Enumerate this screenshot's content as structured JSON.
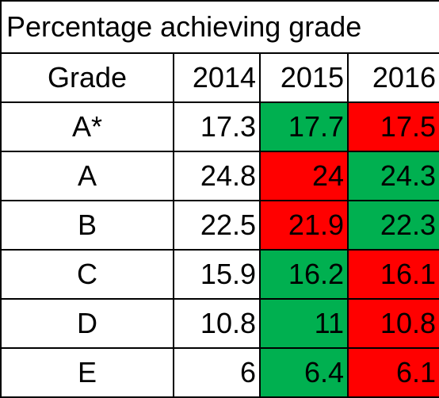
{
  "table": {
    "title": "Percentage achieving grade",
    "headers": [
      "Grade",
      "2014",
      "2015",
      "2016"
    ],
    "rows": [
      {
        "grade": "A*",
        "y2014": "17.3",
        "y2015": "17.7",
        "y2016": "17.5"
      },
      {
        "grade": "A",
        "y2014": "24.8",
        "y2015": "24",
        "y2016": "24.3"
      },
      {
        "grade": "B",
        "y2014": "22.5",
        "y2015": "21.9",
        "y2016": "22.3"
      },
      {
        "grade": "C",
        "y2014": "15.9",
        "y2015": "16.2",
        "y2016": "16.1"
      },
      {
        "grade": "D",
        "y2014": "10.8",
        "y2015": "11",
        "y2016": "10.8"
      },
      {
        "grade": "E",
        "y2014": "6",
        "y2015": "6.4",
        "y2016": "6.1"
      }
    ],
    "cell_colors": {
      "increase": "#00b050",
      "decrease": "#ff0000",
      "neutral": "#ffffff"
    },
    "row_fills": [
      {
        "y2015": "increase",
        "y2016": "decrease"
      },
      {
        "y2015": "decrease",
        "y2016": "increase"
      },
      {
        "y2015": "decrease",
        "y2016": "increase"
      },
      {
        "y2015": "increase",
        "y2016": "decrease"
      },
      {
        "y2015": "increase",
        "y2016": "decrease"
      },
      {
        "y2015": "increase",
        "y2016": "decrease"
      }
    ]
  }
}
